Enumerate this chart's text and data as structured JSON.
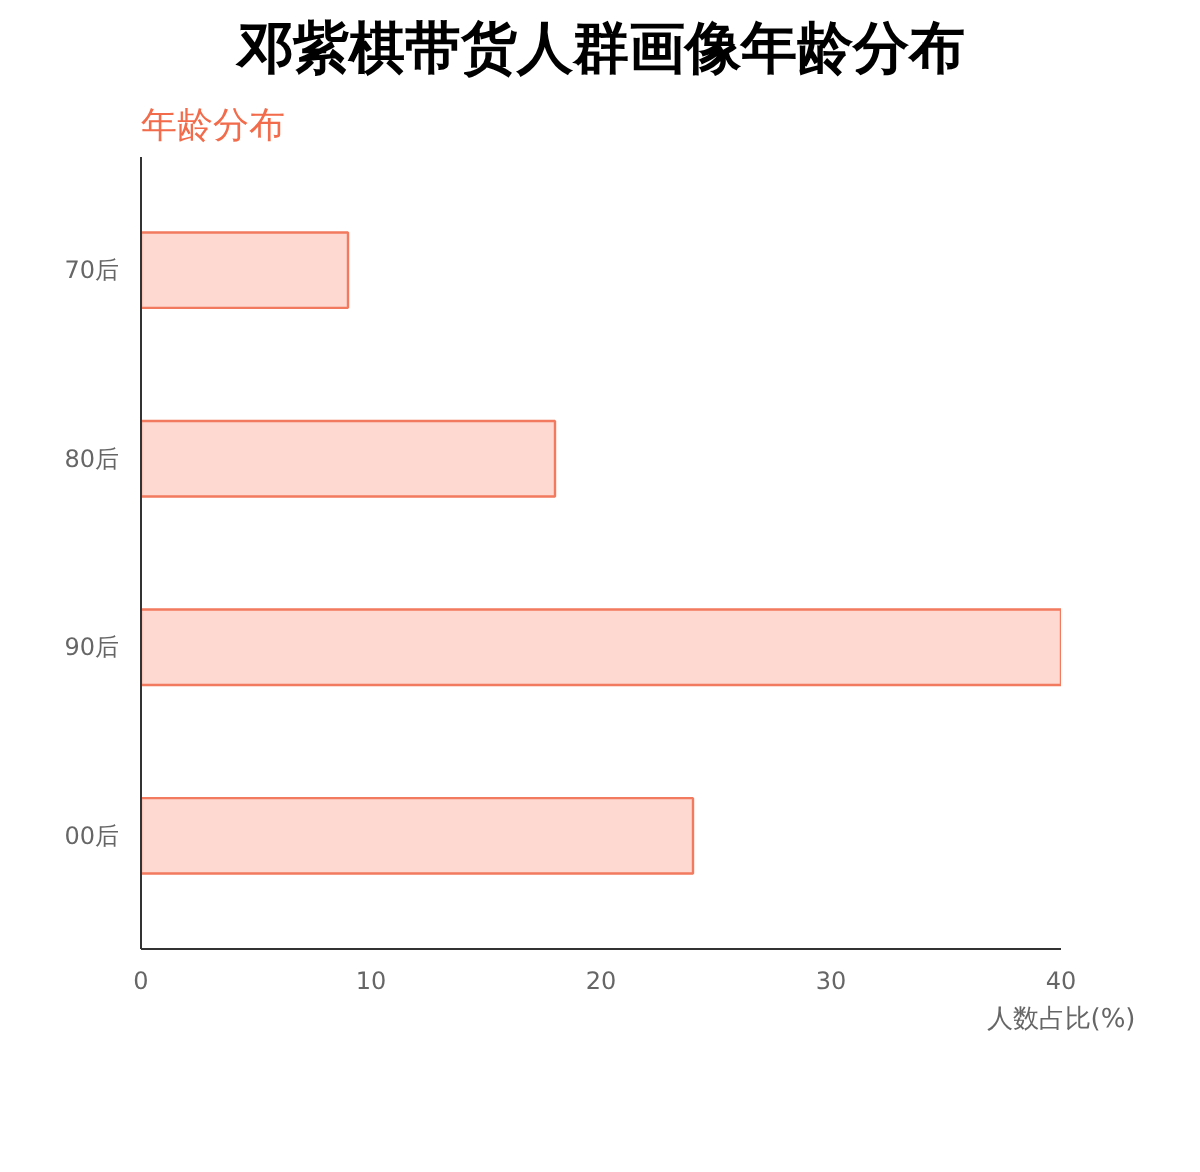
{
  "chart_data": {
    "type": "bar",
    "orientation": "horizontal",
    "title": "邓紫棋带货人群画像年龄分布",
    "subtitle": "年龄分布",
    "categories": [
      "70后",
      "80后",
      "90后",
      "00后"
    ],
    "series": [
      {
        "color": "#fdd9d1",
        "values": [
          9,
          18,
          40,
          24
        ]
      }
    ],
    "xlabel": "人数占比(%)",
    "xlim": [
      0,
      40
    ],
    "xticks": [
      0,
      10,
      20,
      30,
      40
    ],
    "grid": false
  }
}
